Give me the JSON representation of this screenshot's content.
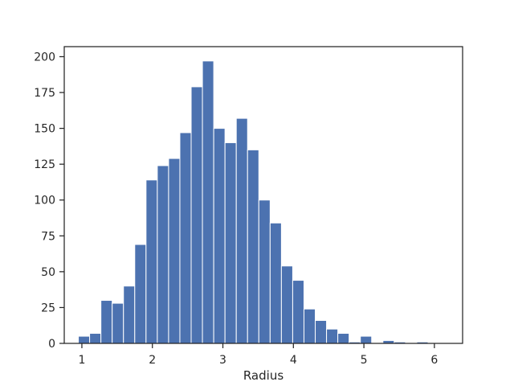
{
  "chart_data": {
    "type": "bar",
    "title": "",
    "xlabel": "Radius",
    "ylabel": "",
    "xlim": [
      0.75,
      6.4
    ],
    "ylim": [
      0,
      207
    ],
    "grid": false,
    "bar_color": "#4C72B0",
    "bins": {
      "start": 0.95,
      "width": 0.16,
      "counts": [
        5,
        7,
        30,
        28,
        40,
        69,
        114,
        124,
        129,
        147,
        179,
        197,
        150,
        140,
        157,
        135,
        100,
        84,
        54,
        44,
        24,
        16,
        10,
        7,
        1,
        5,
        0,
        2,
        1,
        0,
        1
      ]
    },
    "x_ticks": [
      {
        "value": 1,
        "label": "1"
      },
      {
        "value": 2,
        "label": "2"
      },
      {
        "value": 3,
        "label": "3"
      },
      {
        "value": 4,
        "label": "4"
      },
      {
        "value": 5,
        "label": "5"
      },
      {
        "value": 6,
        "label": "6"
      }
    ],
    "y_ticks": [
      {
        "value": 0,
        "label": "0"
      },
      {
        "value": 25,
        "label": "25"
      },
      {
        "value": 50,
        "label": "50"
      },
      {
        "value": 75,
        "label": "75"
      },
      {
        "value": 100,
        "label": "100"
      },
      {
        "value": 125,
        "label": "125"
      },
      {
        "value": 150,
        "label": "150"
      },
      {
        "value": 175,
        "label": "175"
      },
      {
        "value": 200,
        "label": "200"
      }
    ]
  }
}
